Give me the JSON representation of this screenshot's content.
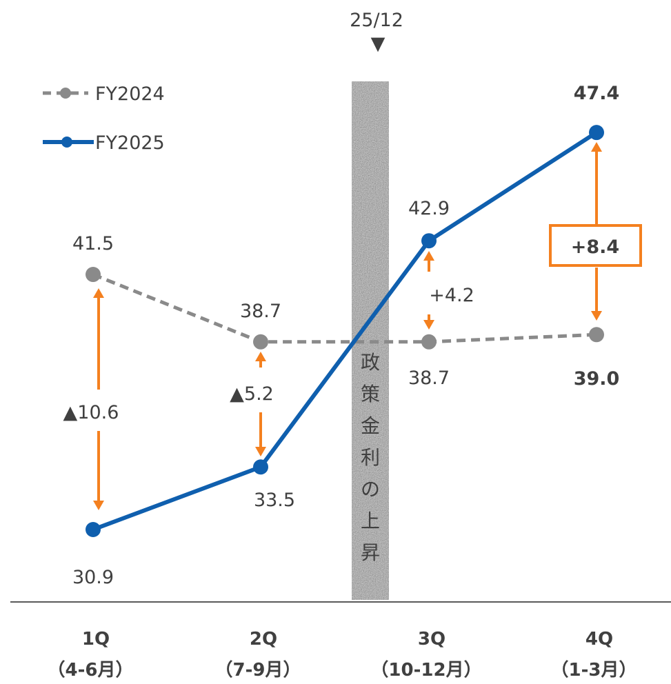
{
  "colors": {
    "fy2024": "#8a8a8a",
    "fy2025": "#0f5fae",
    "arrow": "#f4801f",
    "band": "#e4e4e4",
    "axis": "#595959"
  },
  "chart_data": {
    "type": "line",
    "categories": [
      "1Q",
      "2Q",
      "3Q",
      "4Q"
    ],
    "category_sublabels": [
      "（4-6月）",
      "（7-9月）",
      "（10-12月）",
      "（1-3月）"
    ],
    "series": [
      {
        "name": "FY2024",
        "values": [
          41.5,
          38.7,
          38.7,
          39.0
        ],
        "labels": [
          "41.5",
          "38.7",
          "38.7",
          "39.0"
        ],
        "style": "dashed"
      },
      {
        "name": "FY2025",
        "values": [
          30.9,
          33.5,
          42.9,
          47.4
        ],
        "labels": [
          "30.9",
          "33.5",
          "42.9",
          "47.4"
        ],
        "style": "solid"
      }
    ],
    "differences": [
      "▲10.6",
      "▲5.2",
      "+4.2",
      "+8.4"
    ],
    "event": {
      "date": "25/12",
      "marker": "▼",
      "label": "政策金利の上昇",
      "between": [
        "2Q",
        "3Q"
      ]
    },
    "ylim": [
      28,
      50
    ],
    "grid": false,
    "legend_position": "top-left"
  }
}
